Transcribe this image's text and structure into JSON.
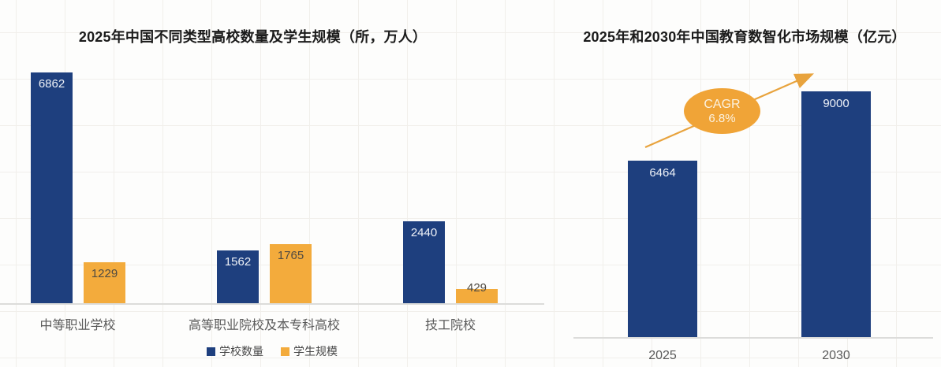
{
  "page": {
    "background_color": "#fdfdfc",
    "grid_line_color": "#f1efeb",
    "axis_line_color": "#dcdcda"
  },
  "chart_data": [
    {
      "type": "bar",
      "title": "2025年中国不同类型高校数量及学生规模（所，万人）",
      "categories": [
        "中等职业学校",
        "高等职业院校及本专科高校",
        "技工院校"
      ],
      "series": [
        {
          "name": "学校数量",
          "color": "#1e3f7e",
          "label_color": "#eef1f7",
          "values": [
            6862,
            1562,
            2440
          ]
        },
        {
          "name": "学生规模",
          "color": "#f3ab3c",
          "label_color": "#4f4a42",
          "values": [
            1229,
            1765,
            429
          ]
        }
      ],
      "outside_label_color": "#4f4a42",
      "xlabel": "",
      "ylabel": "",
      "ylim": [
        0,
        7300
      ],
      "gridlines": false,
      "legend_position": "bottom",
      "value_labels": true
    },
    {
      "type": "bar",
      "title": "2025年和2030年中国教育数智化市场规模（亿元）",
      "categories": [
        "2025",
        "2030"
      ],
      "series": [
        {
          "name": "市场规模",
          "color": "#1e3f7e",
          "label_color": "#eef1f7",
          "values": [
            6464,
            9000
          ]
        }
      ],
      "outside_label_color": "#4f4a42",
      "xlabel": "",
      "ylabel": "",
      "ylim": [
        0,
        9500
      ],
      "gridlines": false,
      "legend_position": "none",
      "value_labels": true,
      "annotation": {
        "label": "CAGR",
        "value": "6.8%",
        "shape": "ellipse",
        "color": "#f0a437",
        "arrow_color": "#e8a33d"
      }
    }
  ]
}
